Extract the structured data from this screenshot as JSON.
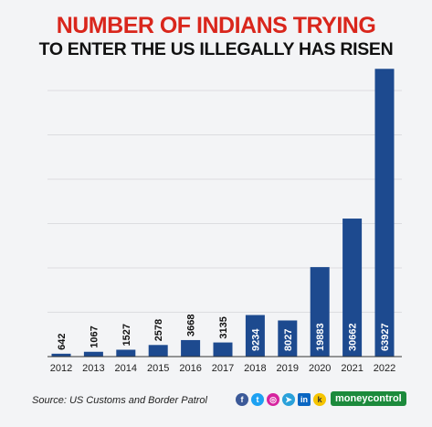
{
  "header": {
    "title_line1": "NUMBER OF INDIANS TRYING",
    "title_line2": "TO ENTER THE US ILLEGALLY HAS RISEN"
  },
  "footer": {
    "source": "Source: US Customs and Border Patrol",
    "brand": "moneycontrol",
    "social_icons": [
      "facebook-icon",
      "twitter-icon",
      "instagram-icon",
      "telegram-icon",
      "linkedin-icon",
      "koo-icon"
    ]
  },
  "colors": {
    "bar": "#1d4a8f",
    "title_red": "#d9261c",
    "title_black": "#111111",
    "brand_green": "#1c8a3c"
  },
  "chart_data": {
    "type": "bar",
    "categories": [
      "2012",
      "2013",
      "2014",
      "2015",
      "2016",
      "2017",
      "2018",
      "2019",
      "2020",
      "2021",
      "2022"
    ],
    "values": [
      642,
      1067,
      1527,
      2578,
      3668,
      3135,
      9234,
      8027,
      19883,
      30662,
      63927
    ],
    "title": "NUMBER OF INDIANS TRYING TO ENTER THE US ILLEGALLY HAS RISEN",
    "xlabel": "",
    "ylabel": "",
    "ylim": [
      0,
      65000
    ],
    "grid": true,
    "data_labels": true
  }
}
